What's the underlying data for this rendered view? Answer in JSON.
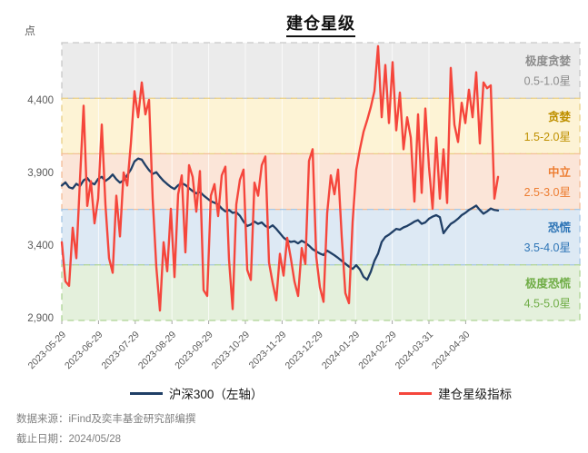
{
  "footer": {
    "source": "数据来源：iFind及奕丰基金研究部编撰",
    "as_of": "截止日期：2024/05/28"
  },
  "chart_data": {
    "type": "line",
    "title": "建仓星级",
    "ylabel": "点",
    "legend_position": "bottom",
    "axis": {
      "y_max": 4794,
      "y_min": 2881,
      "grid": "vertical-faint"
    },
    "y_ticks": [
      {
        "label": "4,400",
        "value": 4400
      },
      {
        "label": "3,900",
        "value": 3900
      },
      {
        "label": "3,400",
        "value": 3400
      },
      {
        "label": "2,900",
        "value": 2900
      }
    ],
    "x_tick_labels": [
      "2023-05-29",
      "2023-06-29",
      "2023-07-29",
      "2023-08-29",
      "2023-09-29",
      "2023-10-29",
      "2023-11-29",
      "2023-12-29",
      "2024-01-29",
      "2024-02-29",
      "2024-03-31",
      "2024-04-30"
    ],
    "bands": [
      {
        "name": "极度贪婪",
        "stars": "0.5-1.0星",
        "v_hi": 4794,
        "v_lo": 4411,
        "fill": "#ebebeb",
        "stroke": "#c8c8c8",
        "text_color": "#8c8c8c"
      },
      {
        "name": "贪婪",
        "stars": "1.5-2.0星",
        "v_hi": 4411,
        "v_lo": 4029,
        "fill": "#fdf3d5",
        "stroke": "#e9cf86",
        "text_color": "#bf9000"
      },
      {
        "name": "中立",
        "stars": "2.5-3.0星",
        "v_hi": 4029,
        "v_lo": 3646,
        "fill": "#fbe5d8",
        "stroke": "#f3bd97",
        "text_color": "#ed7d31"
      },
      {
        "name": "恐慌",
        "stars": "3.5-4.0星",
        "v_hi": 3646,
        "v_lo": 3264,
        "fill": "#dde9f4",
        "stroke": "#a5c6e4",
        "text_color": "#2e75b6"
      },
      {
        "name": "极度恐慌",
        "stars": "4.5-5.0星",
        "v_hi": 3264,
        "v_lo": 2881,
        "fill": "#e4f0dc",
        "stroke": "#aed494",
        "text_color": "#70ad47"
      }
    ],
    "series": [
      {
        "name": "沪深300（左轴）",
        "color": "#203f66",
        "width": 2.3,
        "values": [
          3810,
          3832,
          3798,
          3790,
          3822,
          3806,
          3846,
          3862,
          3830,
          3818,
          3856,
          3870,
          3842,
          3860,
          3886,
          3854,
          3830,
          3846,
          3882,
          3920,
          3976,
          3996,
          3988,
          3950,
          3916,
          3890,
          3902,
          3870,
          3842,
          3820,
          3800,
          3786,
          3812,
          3826,
          3814,
          3792,
          3772,
          3756,
          3766,
          3742,
          3722,
          3702,
          3692,
          3680,
          3652,
          3632,
          3642,
          3622,
          3626,
          3602,
          3562,
          3532,
          3542,
          3562,
          3546,
          3556,
          3532,
          3520,
          3536,
          3512,
          3482,
          3452,
          3432,
          3422,
          3426,
          3412,
          3430,
          3416,
          3396,
          3372,
          3356,
          3342,
          3332,
          3362,
          3346,
          3330,
          3312,
          3292,
          3272,
          3252,
          3236,
          3262,
          3232,
          3182,
          3162,
          3216,
          3292,
          3342,
          3422,
          3456,
          3472,
          3492,
          3512,
          3506,
          3522,
          3532,
          3546,
          3562,
          3572,
          3546,
          3556,
          3582,
          3596,
          3606,
          3592,
          3482,
          3516,
          3546,
          3562,
          3582,
          3606,
          3622,
          3642,
          3656,
          3672,
          3642,
          3616,
          3632,
          3652,
          3642,
          3638
        ]
      },
      {
        "name": "建仓星级指标",
        "color": "#f5463c",
        "width": 2.4,
        "values": [
          3420,
          3150,
          3120,
          3520,
          3310,
          3850,
          4360,
          3670,
          3840,
          3550,
          3720,
          4230,
          3680,
          3310,
          3210,
          3740,
          3460,
          3900,
          3810,
          4100,
          4460,
          4280,
          4520,
          4300,
          4400,
          3720,
          3250,
          2950,
          3420,
          3220,
          3650,
          3180,
          3750,
          3880,
          3350,
          3950,
          3870,
          3630,
          3910,
          3090,
          3050,
          3740,
          3820,
          3600,
          3880,
          3940,
          3300,
          2960,
          3680,
          3850,
          3920,
          3230,
          3160,
          3830,
          3740,
          3950,
          4010,
          3280,
          3140,
          3020,
          3340,
          3190,
          3450,
          3310,
          3150,
          3050,
          3380,
          3270,
          3980,
          4060,
          3320,
          3110,
          3010,
          3620,
          3880,
          3750,
          3920,
          3460,
          3070,
          3000,
          3560,
          3920,
          4060,
          4180,
          4260,
          4350,
          4460,
          4770,
          4280,
          4640,
          4240,
          4660,
          4190,
          4450,
          4060,
          4280,
          4140,
          3700,
          4300,
          3760,
          4340,
          3940,
          3650,
          4140,
          3720,
          4060,
          3690,
          4620,
          4230,
          4110,
          4380,
          4240,
          4470,
          4280,
          4590,
          4100,
          4520,
          4480,
          4500,
          3720,
          3870
        ]
      }
    ]
  }
}
